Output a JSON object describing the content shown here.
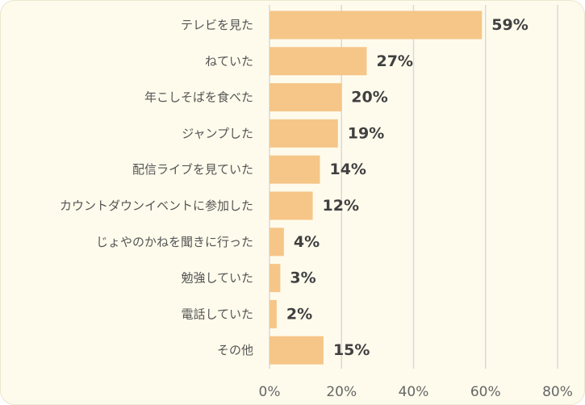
{
  "chart_data": {
    "type": "bar",
    "orientation": "horizontal",
    "categories": [
      "テレビを見た",
      "ねていた",
      "年こしそばを食べた",
      "ジャンプした",
      "配信ライブを見ていた",
      "カウントダウンイベントに参加した",
      "じょやのかねを聞きに行った",
      "勉強していた",
      "電話していた",
      "その他"
    ],
    "values": [
      59,
      27,
      20,
      19,
      14,
      12,
      4,
      3,
      2,
      15
    ],
    "value_labels": [
      "59%",
      "27%",
      "20%",
      "19%",
      "14%",
      "12%",
      "4%",
      "3%",
      "2%",
      "15%"
    ],
    "xlim": [
      0,
      80
    ],
    "x_ticks": [
      0,
      20,
      40,
      60,
      80
    ],
    "x_tick_labels": [
      "0%",
      "20%",
      "40%",
      "60%",
      "80%"
    ],
    "grid": true,
    "bar_color": "#f5c688",
    "grid_color": "#d9d9d9",
    "background_color": "#fefbec"
  }
}
